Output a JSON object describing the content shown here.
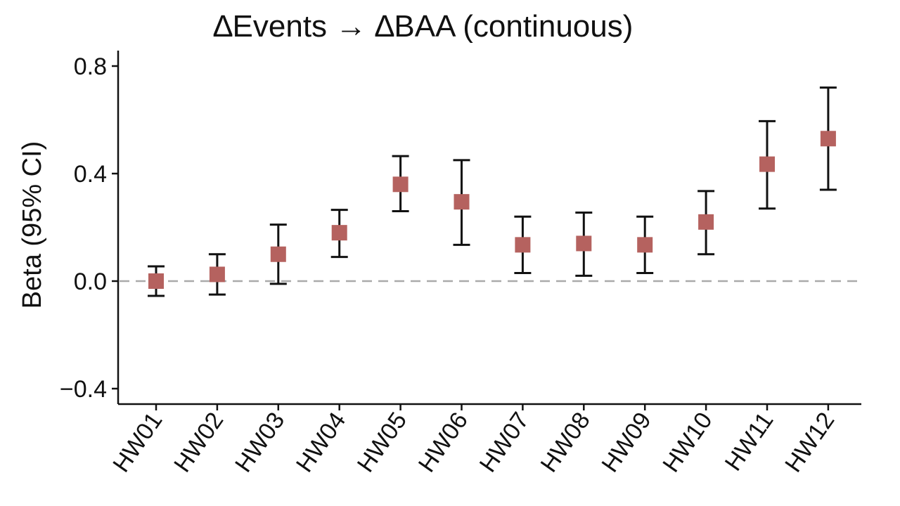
{
  "chart_data": {
    "type": "scatter",
    "title": "∆Events → ∆BAA (continuous)",
    "xlabel": "",
    "ylabel": "Beta (95% CI)",
    "ylim": [
      -0.45,
      0.86
    ],
    "yticks": [
      0.8,
      0.4,
      0.0,
      -0.4
    ],
    "ytick_labels": [
      "0.8",
      "0.4",
      "0.0",
      "−0.4"
    ],
    "reference_line": {
      "y": 0.0,
      "style": "dashed",
      "color": "#aaaaaa"
    },
    "grid": false,
    "marker": {
      "shape": "square",
      "color": "#b5625f"
    },
    "categories": [
      "HW01",
      "HW02",
      "HW03",
      "HW04",
      "HW05",
      "HW06",
      "HW07",
      "HW08",
      "HW09",
      "HW10",
      "HW11",
      "HW12"
    ],
    "series": [
      {
        "values": [
          0.0,
          0.025,
          0.1,
          0.18,
          0.36,
          0.295,
          0.135,
          0.14,
          0.135,
          0.22,
          0.435,
          0.53
        ],
        "ci_lower": [
          -0.055,
          -0.05,
          -0.01,
          0.09,
          0.26,
          0.135,
          0.03,
          0.02,
          0.03,
          0.1,
          0.27,
          0.34
        ],
        "ci_upper": [
          0.055,
          0.1,
          0.21,
          0.265,
          0.465,
          0.45,
          0.24,
          0.255,
          0.24,
          0.335,
          0.595,
          0.72
        ]
      }
    ]
  }
}
